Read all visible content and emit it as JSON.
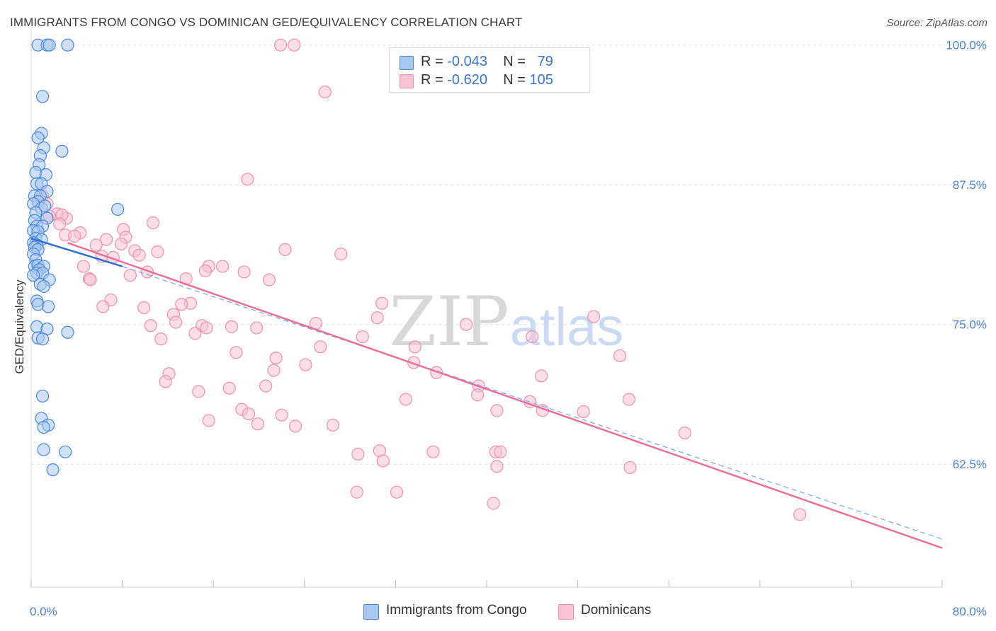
{
  "title": "IMMIGRANTS FROM CONGO VS DOMINICAN GED/EQUIVALENCY CORRELATION CHART",
  "source": "Source: ZipAtlas.com",
  "watermark": {
    "zip": "ZIP",
    "atlas": "atlas"
  },
  "legend": {
    "r_label": "R =",
    "n_label": "N =",
    "rows": [
      {
        "r": "-0.043",
        "n": "79"
      },
      {
        "r": "-0.620",
        "n": "105"
      }
    ]
  },
  "colors": {
    "congo_fill": "#a9c8f0",
    "congo_stroke": "#4a86d8",
    "congo_line": "#2e6fd0",
    "dominican_fill": "#f7c3d4",
    "dominican_stroke": "#ec8fb0",
    "dominican_line": "#e8709a",
    "axis_tick_text": "#4a7fcf",
    "grid": "#dddddd"
  },
  "chart_data": {
    "type": "scatter",
    "title": "IMMIGRANTS FROM CONGO VS DOMINICAN GED/EQUIVALENCY CORRELATION CHART",
    "xlabel": "",
    "ylabel": "GED/Equivalency",
    "xlim": [
      0,
      80
    ],
    "ylim": [
      51.5,
      101.5
    ],
    "x_tick_labels": [
      {
        "value": 0,
        "label": "0.0%"
      },
      {
        "value": 80,
        "label": "80.0%"
      }
    ],
    "x_minor_ticks": [
      0,
      8,
      16,
      24,
      32,
      40,
      48,
      56,
      64,
      72,
      80
    ],
    "y_tick_labels": [
      {
        "value": 100,
        "label": "100.0%"
      },
      {
        "value": 87.5,
        "label": "87.5%"
      },
      {
        "value": 75,
        "label": "75.0%"
      },
      {
        "value": 62.5,
        "label": "62.5%"
      }
    ],
    "grid": true,
    "legend_position": "top-center",
    "series": [
      {
        "name": "Immigrants from Congo",
        "R": -0.043,
        "N": 79,
        "trend_solid": [
          [
            0,
            82.7
          ],
          [
            8,
            80.2
          ]
        ],
        "trend_dashed": [
          [
            8,
            80.2
          ],
          [
            80,
            55.8
          ]
        ],
        "points": [
          [
            0.6,
            100.0
          ],
          [
            1.4,
            100.0
          ],
          [
            1.6,
            100.0
          ],
          [
            3.2,
            100.0
          ],
          [
            1.0,
            95.4
          ],
          [
            0.9,
            92.1
          ],
          [
            0.6,
            91.7
          ],
          [
            1.1,
            90.8
          ],
          [
            2.7,
            90.5
          ],
          [
            0.8,
            90.1
          ],
          [
            0.7,
            89.3
          ],
          [
            0.4,
            88.6
          ],
          [
            1.3,
            88.4
          ],
          [
            0.5,
            87.6
          ],
          [
            0.9,
            87.6
          ],
          [
            1.4,
            86.9
          ],
          [
            0.3,
            86.5
          ],
          [
            0.8,
            86.5
          ],
          [
            0.6,
            86.0
          ],
          [
            0.2,
            85.8
          ],
          [
            0.9,
            85.4
          ],
          [
            1.2,
            85.6
          ],
          [
            0.4,
            85.0
          ],
          [
            7.6,
            85.3
          ],
          [
            0.3,
            84.3
          ],
          [
            1.4,
            84.5
          ],
          [
            0.5,
            83.8
          ],
          [
            1.0,
            83.8
          ],
          [
            0.2,
            83.4
          ],
          [
            0.6,
            83.3
          ],
          [
            0.4,
            82.7
          ],
          [
            0.9,
            82.6
          ],
          [
            0.2,
            82.3
          ],
          [
            0.5,
            82.1
          ],
          [
            0.3,
            81.9
          ],
          [
            0.6,
            81.7
          ],
          [
            0.2,
            81.3
          ],
          [
            0.4,
            80.8
          ],
          [
            0.3,
            80.2
          ],
          [
            0.6,
            80.3
          ],
          [
            1.1,
            80.2
          ],
          [
            0.7,
            79.9
          ],
          [
            0.5,
            79.6
          ],
          [
            1.0,
            79.6
          ],
          [
            0.2,
            79.4
          ],
          [
            1.6,
            79.0
          ],
          [
            0.8,
            78.6
          ],
          [
            1.1,
            78.4
          ],
          [
            0.5,
            77.1
          ],
          [
            0.6,
            76.8
          ],
          [
            1.5,
            76.6
          ],
          [
            0.5,
            74.8
          ],
          [
            1.4,
            74.6
          ],
          [
            3.2,
            74.3
          ],
          [
            0.6,
            73.8
          ],
          [
            1.0,
            73.7
          ],
          [
            1.0,
            68.6
          ],
          [
            0.9,
            66.6
          ],
          [
            1.5,
            66.0
          ],
          [
            1.1,
            65.8
          ],
          [
            1.1,
            63.8
          ],
          [
            3.0,
            63.6
          ],
          [
            1.9,
            62.0
          ]
        ]
      },
      {
        "name": "Dominicans",
        "R": -0.62,
        "N": 105,
        "trend_solid": [
          [
            3.2,
            82.3
          ],
          [
            80,
            55.0
          ]
        ],
        "points": [
          [
            21.9,
            100.0
          ],
          [
            23.1,
            100.0
          ],
          [
            25.8,
            95.8
          ],
          [
            19.0,
            88.0
          ],
          [
            1.0,
            86.5
          ],
          [
            1.4,
            85.8
          ],
          [
            2.3,
            84.9
          ],
          [
            3.1,
            84.5
          ],
          [
            2.7,
            84.8
          ],
          [
            1.6,
            84.7
          ],
          [
            10.7,
            84.1
          ],
          [
            2.5,
            84.0
          ],
          [
            8.1,
            83.5
          ],
          [
            4.3,
            83.2
          ],
          [
            3.0,
            83.0
          ],
          [
            3.8,
            82.9
          ],
          [
            8.3,
            82.8
          ],
          [
            6.6,
            82.6
          ],
          [
            5.7,
            82.1
          ],
          [
            7.9,
            82.2
          ],
          [
            9.1,
            81.6
          ],
          [
            11.1,
            81.5
          ],
          [
            22.3,
            81.7
          ],
          [
            27.2,
            81.3
          ],
          [
            6.2,
            81.1
          ],
          [
            9.5,
            81.2
          ],
          [
            7.2,
            81.0
          ],
          [
            4.6,
            80.2
          ],
          [
            15.6,
            80.2
          ],
          [
            16.8,
            80.2
          ],
          [
            15.3,
            79.8
          ],
          [
            18.7,
            79.7
          ],
          [
            10.2,
            79.7
          ],
          [
            8.7,
            79.4
          ],
          [
            5.1,
            79.1
          ],
          [
            5.2,
            79.0
          ],
          [
            13.6,
            79.1
          ],
          [
            20.9,
            79.0
          ],
          [
            7.0,
            77.2
          ],
          [
            14.0,
            76.9
          ],
          [
            13.2,
            76.8
          ],
          [
            30.8,
            76.9
          ],
          [
            6.3,
            76.6
          ],
          [
            9.9,
            76.5
          ],
          [
            12.5,
            75.9
          ],
          [
            30.4,
            75.6
          ],
          [
            49.4,
            75.7
          ],
          [
            12.7,
            75.2
          ],
          [
            25.0,
            75.1
          ],
          [
            38.2,
            75.0
          ],
          [
            10.5,
            74.9
          ],
          [
            15.0,
            74.9
          ],
          [
            17.6,
            74.8
          ],
          [
            19.8,
            74.7
          ],
          [
            15.4,
            74.7
          ],
          [
            14.4,
            74.2
          ],
          [
            29.1,
            73.9
          ],
          [
            44.0,
            73.9
          ],
          [
            11.4,
            73.7
          ],
          [
            25.4,
            73.0
          ],
          [
            33.7,
            73.0
          ],
          [
            18.0,
            72.5
          ],
          [
            51.7,
            72.2
          ],
          [
            21.5,
            72.0
          ],
          [
            33.6,
            71.6
          ],
          [
            24.1,
            71.4
          ],
          [
            21.3,
            70.9
          ],
          [
            35.6,
            70.7
          ],
          [
            12.1,
            70.6
          ],
          [
            11.8,
            69.9
          ],
          [
            44.8,
            70.4
          ],
          [
            39.3,
            69.5
          ],
          [
            20.6,
            69.5
          ],
          [
            17.4,
            69.3
          ],
          [
            14.7,
            69.0
          ],
          [
            39.2,
            68.7
          ],
          [
            32.9,
            68.3
          ],
          [
            52.5,
            68.3
          ],
          [
            43.8,
            68.1
          ],
          [
            18.5,
            67.4
          ],
          [
            40.9,
            67.3
          ],
          [
            44.9,
            67.3
          ],
          [
            48.5,
            67.2
          ],
          [
            19.1,
            67.0
          ],
          [
            22.0,
            66.9
          ],
          [
            15.6,
            66.4
          ],
          [
            19.9,
            66.1
          ],
          [
            26.5,
            66.0
          ],
          [
            23.2,
            65.9
          ],
          [
            57.4,
            65.3
          ],
          [
            30.6,
            63.7
          ],
          [
            28.7,
            63.4
          ],
          [
            35.3,
            63.6
          ],
          [
            40.8,
            63.6
          ],
          [
            40.9,
            62.3
          ],
          [
            30.9,
            62.8
          ],
          [
            41.2,
            63.6
          ],
          [
            52.6,
            62.2
          ],
          [
            28.6,
            60.0
          ],
          [
            32.1,
            60.0
          ],
          [
            40.6,
            59.0
          ],
          [
            67.5,
            58.0
          ]
        ]
      }
    ]
  }
}
